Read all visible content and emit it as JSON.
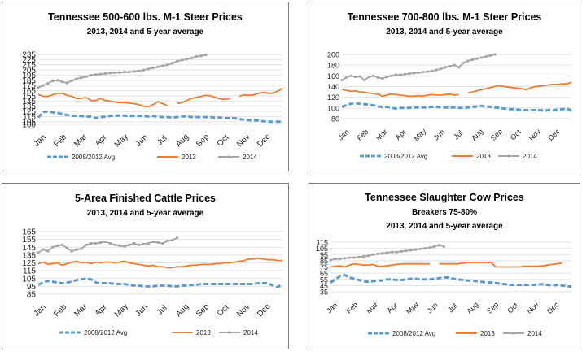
{
  "months": [
    "Jan",
    "Feb",
    "Mar",
    "Apr",
    "May",
    "Jun",
    "Jul",
    "Aug",
    "Sep",
    "Oct",
    "Nov",
    "Dec"
  ],
  "colors": {
    "avg": "#5b9bd5",
    "y2013": "#ed7d31",
    "y2014": "#a5a5a5"
  },
  "chart_data": [
    {
      "type": "line",
      "title": "Tennessee 500-600 lbs. M-1 Steer Prices",
      "subtitle": "2013, 2014 and 5-year average",
      "ylim": [
        100,
        235
      ],
      "yticks": [
        100,
        105,
        115,
        125,
        135,
        145,
        155,
        165,
        175,
        185,
        195,
        205,
        215,
        225,
        235
      ],
      "series": [
        {
          "name": "2008/2012 Avg",
          "key": "avg",
          "values": [
            113,
            124,
            125,
            123,
            122,
            120,
            118,
            117,
            116,
            116,
            115,
            115,
            112,
            114,
            115,
            116,
            117,
            117,
            117,
            116,
            116,
            116,
            116,
            115,
            116,
            115,
            114,
            114,
            113,
            114,
            115,
            116,
            114,
            114,
            114,
            114,
            114,
            113,
            113,
            112,
            112,
            112,
            110,
            109,
            108,
            108,
            107,
            106,
            105,
            105,
            105,
            105
          ]
        },
        {
          "name": "2013",
          "key": "y2013",
          "values": [
            158,
            154,
            154,
            157,
            160,
            160,
            156,
            154,
            150,
            150,
            152,
            146,
            146,
            150,
            146,
            145,
            143,
            142,
            142,
            141,
            140,
            138,
            135,
            134,
            138,
            144,
            140,
            136,
            null,
            140,
            142,
            146,
            150,
            152,
            154,
            156,
            155,
            152,
            149,
            148,
            150,
            null,
            154,
            157,
            156,
            157,
            160,
            162,
            160,
            160,
            164,
            170
          ]
        },
        {
          "name": "2014",
          "key": "y2014",
          "values": [
            171,
            175,
            179,
            184,
            185,
            182,
            180,
            184,
            188,
            190,
            192,
            195,
            196,
            197,
            198,
            199,
            200,
            200,
            201,
            201,
            202,
            203,
            205,
            207,
            209,
            211,
            213,
            215,
            218,
            222,
            224,
            226,
            228,
            231,
            232,
            234
          ]
        }
      ]
    },
    {
      "type": "line",
      "title": "Tennessee 700-800 lbs. M-1 Steer Prices",
      "subtitle": "2013, 2014 and 5-year average",
      "ylim": [
        80,
        200
      ],
      "yticks": [
        80,
        100,
        120,
        140,
        160,
        180,
        200
      ],
      "series": [
        {
          "name": "2008/2012 Avg",
          "key": "avg",
          "values": [
            102,
            105,
            108,
            109,
            108,
            107,
            106,
            105,
            103,
            102,
            102,
            100,
            99,
            100,
            100,
            100,
            101,
            101,
            101,
            101,
            102,
            102,
            101,
            101,
            101,
            101,
            100,
            100,
            101,
            102,
            103,
            104,
            103,
            102,
            101,
            100,
            99,
            98,
            98,
            97,
            96,
            96,
            96,
            96,
            96,
            95,
            96,
            96,
            97,
            98,
            99,
            95
          ]
        },
        {
          "name": "2013",
          "key": "y2013",
          "values": [
            135,
            133,
            131,
            132,
            130,
            129,
            128,
            127,
            126,
            122,
            124,
            126,
            125,
            124,
            123,
            122,
            122,
            123,
            122,
            124,
            125,
            124,
            124,
            125,
            126,
            124,
            125,
            null,
            128,
            130,
            132,
            134,
            136,
            138,
            140,
            142,
            140,
            139,
            138,
            137,
            136,
            134,
            138,
            140,
            141,
            142,
            143,
            144,
            144,
            145,
            145,
            148
          ]
        },
        {
          "name": "2014",
          "key": "y2014",
          "values": [
            152,
            157,
            160,
            158,
            159,
            152,
            158,
            160,
            157,
            155,
            158,
            160,
            162,
            162,
            163,
            164,
            165,
            166,
            167,
            168,
            169,
            171,
            173,
            176,
            178,
            180,
            176,
            184,
            188,
            190,
            192,
            194,
            196,
            198,
            200
          ]
        }
      ]
    },
    {
      "type": "line",
      "title": "5-Area Finished Cattle Prices",
      "subtitle": "2013, 2014 and 5-year average",
      "ylim": [
        85,
        165
      ],
      "yticks": [
        85,
        95,
        105,
        115,
        125,
        135,
        145,
        155,
        165
      ],
      "series": [
        {
          "name": "2008/2012 Avg",
          "key": "avg",
          "values": [
            97,
            100,
            102,
            101,
            100,
            99,
            100,
            101,
            103,
            104,
            105,
            104,
            100,
            99,
            99,
            99,
            98,
            98,
            98,
            97,
            96,
            96,
            95,
            95,
            95,
            96,
            96,
            96,
            95,
            95,
            96,
            96,
            97,
            97,
            98,
            98,
            98,
            98,
            98,
            98,
            98,
            98,
            98,
            98,
            98,
            98,
            99,
            99,
            99,
            96,
            94,
            98
          ]
        },
        {
          "name": "2013",
          "key": "y2013",
          "values": [
            124,
            126,
            123,
            124,
            125,
            122,
            124,
            126,
            127,
            125,
            126,
            124,
            126,
            125,
            126,
            126,
            125,
            126,
            127,
            125,
            124,
            123,
            122,
            121,
            122,
            120,
            120,
            119,
            119,
            120,
            120,
            121,
            122,
            122,
            123,
            123,
            123,
            124,
            124,
            125,
            125,
            126,
            127,
            128,
            130,
            130,
            131,
            130,
            129,
            129,
            128,
            128
          ]
        },
        {
          "name": "2014",
          "key": "y2014",
          "values": [
            138,
            142,
            140,
            145,
            147,
            148,
            144,
            140,
            142,
            143,
            148,
            150,
            150,
            151,
            152,
            150,
            148,
            147,
            146,
            148,
            150,
            148,
            149,
            150,
            152,
            151,
            150,
            153,
            154,
            157
          ]
        }
      ]
    },
    {
      "type": "line",
      "title": "Tennessee Slaughter Cow Prices",
      "subtitle": "Breakers 75-80%",
      "subtitle2": "2013, 2014 and 5-year average",
      "ylim": [
        35,
        115
      ],
      "yticks": [
        35,
        45,
        55,
        65,
        75,
        85,
        95,
        105,
        115
      ],
      "series": [
        {
          "name": "2008/2012 Avg",
          "key": "avg",
          "values": [
            50,
            55,
            60,
            62,
            58,
            56,
            54,
            52,
            51,
            52,
            53,
            53,
            55,
            55,
            54,
            54,
            55,
            56,
            56,
            55,
            55,
            55,
            56,
            57,
            58,
            58,
            56,
            55,
            54,
            53,
            53,
            52,
            51,
            50,
            50,
            49,
            48,
            47,
            46,
            46,
            46,
            46,
            46,
            46,
            47,
            47,
            46,
            45,
            46,
            45,
            44,
            43
          ]
        },
        {
          "name": "2013",
          "key": "y2013",
          "values": [
            75,
            76,
            77,
            75,
            78,
            80,
            79,
            78,
            78,
            79,
            76,
            76,
            77,
            78,
            79,
            80,
            80,
            80,
            80,
            80,
            80,
            80,
            null,
            80,
            80,
            80,
            80,
            80,
            81,
            82,
            82,
            82,
            82,
            82,
            82,
            75,
            75,
            75,
            75,
            75,
            75,
            76,
            76,
            76,
            76,
            77,
            78,
            79,
            80,
            81
          ]
        },
        {
          "name": "2014",
          "key": "y2014",
          "values": [
            86,
            88,
            88,
            89,
            90,
            90,
            91,
            92,
            93,
            95,
            96,
            97,
            98,
            99,
            99,
            100,
            101,
            102,
            103,
            104,
            105,
            106,
            108,
            110,
            108
          ]
        }
      ]
    }
  ]
}
